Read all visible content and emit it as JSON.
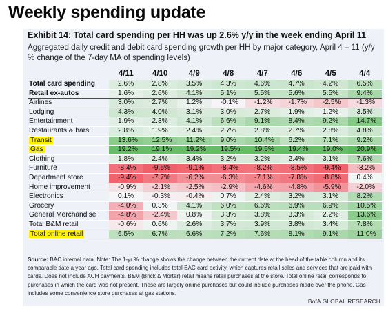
{
  "header": {
    "title": "Weekly spending update",
    "exhibit": "Exhibit 14: Total card spending per HH was up 2.6% y/y in the week ending April 11",
    "subtitle": "Aggregated daily credit and debit card spending growth per HH by major category, April 4 – 11 (y/y % change of the 7-day MA of spending levels)"
  },
  "table": {
    "columns": [
      "4/11",
      "4/10",
      "4/9",
      "4/8",
      "4/7",
      "4/6",
      "4/5",
      "4/4"
    ],
    "rows": [
      {
        "label": "Total card spending",
        "bold": true,
        "highlight": false,
        "sep": false,
        "values": [
          "2.6%",
          "2.8%",
          "3.5%",
          "4.3%",
          "4.6%",
          "4.7%",
          "4.2%",
          "6.5%"
        ]
      },
      {
        "label": "Retail ex-autos",
        "bold": true,
        "highlight": false,
        "sep": true,
        "values": [
          "1.6%",
          "2.6%",
          "4.1%",
          "5.1%",
          "5.5%",
          "5.6%",
          "5.5%",
          "9.4%"
        ]
      },
      {
        "label": "Airlines",
        "bold": false,
        "highlight": false,
        "sep": false,
        "values": [
          "3.0%",
          "2.7%",
          "1.2%",
          "-0.1%",
          "-1.2%",
          "-1.7%",
          "-2.5%",
          "-1.3%"
        ]
      },
      {
        "label": "Lodging",
        "bold": false,
        "highlight": false,
        "sep": false,
        "values": [
          "4.3%",
          "4.0%",
          "3.1%",
          "3.0%",
          "2.7%",
          "1.9%",
          "1.2%",
          "3.5%"
        ]
      },
      {
        "label": "Entertainment",
        "bold": false,
        "highlight": false,
        "sep": false,
        "values": [
          "1.9%",
          "2.3%",
          "4.1%",
          "6.6%",
          "9.1%",
          "8.4%",
          "9.2%",
          "14.7%"
        ]
      },
      {
        "label": "Restaurants & bars",
        "bold": false,
        "highlight": false,
        "sep": false,
        "values": [
          "2.8%",
          "1.9%",
          "2.4%",
          "2.7%",
          "2.8%",
          "2.7%",
          "2.8%",
          "4.8%"
        ]
      },
      {
        "label": "Transit",
        "bold": false,
        "highlight": true,
        "sep": false,
        "values": [
          "13.6%",
          "12.5%",
          "11.2%",
          "9.0%",
          "10.4%",
          "6.2%",
          "7.1%",
          "9.2%"
        ]
      },
      {
        "label": "Gas",
        "bold": false,
        "highlight": true,
        "sep": false,
        "values": [
          "19.2%",
          "19.1%",
          "19.2%",
          "19.5%",
          "19.5%",
          "19.4%",
          "19.0%",
          "20.9%"
        ]
      },
      {
        "label": "Clothing",
        "bold": false,
        "highlight": false,
        "sep": false,
        "values": [
          "1.8%",
          "2.4%",
          "3.4%",
          "3.2%",
          "3.2%",
          "2.4%",
          "3.1%",
          "7.6%"
        ]
      },
      {
        "label": "Furniture",
        "bold": false,
        "highlight": false,
        "sep": false,
        "values": [
          "-8.4%",
          "-9.6%",
          "-9.1%",
          "-8.4%",
          "-8.2%",
          "-8.5%",
          "-9.4%",
          "-3.2%"
        ]
      },
      {
        "label": "Department store",
        "bold": false,
        "highlight": false,
        "sep": false,
        "values": [
          "-9.4%",
          "-7.7%",
          "-6.2%",
          "-6.3%",
          "-7.1%",
          "-7.8%",
          "-8.8%",
          "0.4%"
        ]
      },
      {
        "label": "Home improvement",
        "bold": false,
        "highlight": false,
        "sep": false,
        "values": [
          "-0.9%",
          "-2.1%",
          "-2.5%",
          "-2.9%",
          "-4.6%",
          "-4.8%",
          "-5.9%",
          "-2.0%"
        ]
      },
      {
        "label": "Electronics",
        "bold": false,
        "highlight": false,
        "sep": false,
        "values": [
          "0.1%",
          "-0.3%",
          "-0.4%",
          "0.7%",
          "2.4%",
          "3.2%",
          "3.1%",
          "8.2%"
        ]
      },
      {
        "label": "Grocery",
        "bold": false,
        "highlight": false,
        "sep": false,
        "values": [
          "-4.0%",
          "0.3%",
          "4.1%",
          "6.0%",
          "6.6%",
          "6.9%",
          "6.9%",
          "10.5%"
        ]
      },
      {
        "label": "General Merchandise",
        "bold": false,
        "highlight": false,
        "sep": false,
        "values": [
          "-4.8%",
          "-2.4%",
          "0.8%",
          "3.3%",
          "3.8%",
          "3.3%",
          "2.2%",
          "13.6%"
        ]
      },
      {
        "label": "Total B&M retail",
        "bold": false,
        "highlight": false,
        "sep": false,
        "values": [
          "-0.6%",
          "0.6%",
          "2.6%",
          "3.7%",
          "3.9%",
          "3.8%",
          "3.4%",
          "7.8%"
        ]
      },
      {
        "label": "Total online retail",
        "bold": false,
        "highlight": true,
        "sep": false,
        "values": [
          "6.5%",
          "6.7%",
          "6.6%",
          "7.2%",
          "7.6%",
          "8.1%",
          "9.1%",
          "11.0%"
        ]
      }
    ]
  },
  "source": {
    "label": "Source:",
    "text": "BAC internal data. Note: The 1-yr % change shows the change between the current date at the head of the table column and its comparable date a year ago. Total card spending includes total BAC card activity, which captures retail sales and services that are paid with cards. Does not include ACH payments. B&M (Brick & Mortar) retail means retail purchases at the store. Total online retail corresponds to purchases in which the card was not present. These are largely online purchases but could include purchases made over the phone. Gas includes some convenience store purchases at gas stations."
  },
  "footer": "BofA GLOBAL RESEARCH",
  "colors": {
    "panel": "#eef1f7",
    "highlight": "#fff200",
    "positive_max": "#5cb85c",
    "negative_max": "#f0606a"
  }
}
